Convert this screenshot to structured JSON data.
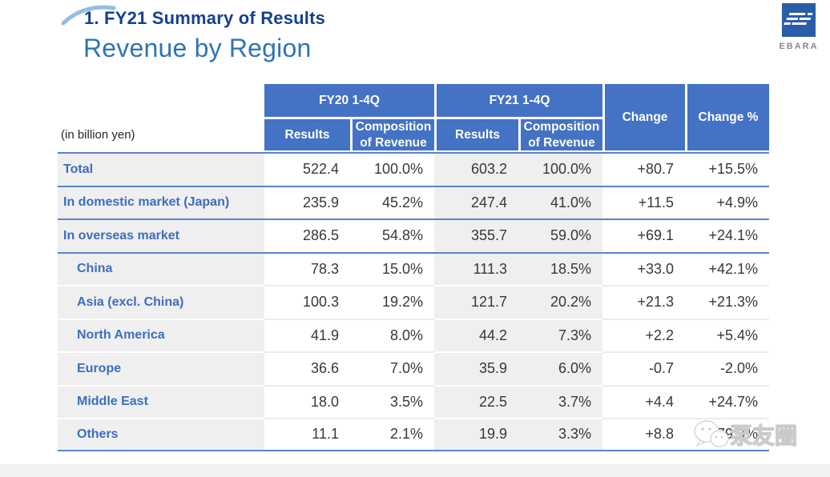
{
  "slide": {
    "kicker": "1. FY21 Summary of Results",
    "title": "Revenue by Region"
  },
  "logo": {
    "text": "EBARA"
  },
  "watermark": {
    "text": "泵友圈"
  },
  "table": {
    "unit_note": "(in billion yen)",
    "groups": [
      {
        "label": "FY20 1-4Q",
        "sub": [
          "Results",
          "Composition of Revenue"
        ]
      },
      {
        "label": "FY21 1-4Q",
        "sub": [
          "Results",
          "Composition of Revenue"
        ]
      }
    ],
    "change_label": "Change",
    "change_pct_label": "Change %",
    "rows": [
      {
        "label": "Total",
        "level": 0,
        "values": [
          "522.4",
          "100.0%",
          "603.2",
          "100.0%",
          "+80.7",
          "+15.5%"
        ]
      },
      {
        "label": "In domestic market (Japan)",
        "level": 0,
        "values": [
          "235.9",
          "45.2%",
          "247.4",
          "41.0%",
          "+11.5",
          "+4.9%"
        ]
      },
      {
        "label": "In overseas market",
        "level": 0,
        "values": [
          "286.5",
          "54.8%",
          "355.7",
          "59.0%",
          "+69.1",
          "+24.1%"
        ]
      },
      {
        "label": "China",
        "level": 1,
        "values": [
          "78.3",
          "15.0%",
          "111.3",
          "18.5%",
          "+33.0",
          "+42.1%"
        ]
      },
      {
        "label": "Asia (excl. China)",
        "level": 1,
        "values": [
          "100.3",
          "19.2%",
          "121.7",
          "20.2%",
          "+21.3",
          "+21.3%"
        ]
      },
      {
        "label": "North America",
        "level": 1,
        "values": [
          "41.9",
          "8.0%",
          "44.2",
          "7.3%",
          "+2.2",
          "+5.4%"
        ]
      },
      {
        "label": "Europe",
        "level": 1,
        "values": [
          "36.6",
          "7.0%",
          "35.9",
          "6.0%",
          "-0.7",
          "-2.0%"
        ]
      },
      {
        "label": "Middle East",
        "level": 1,
        "values": [
          "18.0",
          "3.5%",
          "22.5",
          "3.7%",
          "+4.4",
          "+24.7%"
        ]
      },
      {
        "label": "Others",
        "level": 1,
        "values": [
          "11.1",
          "2.1%",
          "19.9",
          "3.3%",
          "+8.8",
          "+79.3%"
        ]
      }
    ]
  },
  "colors": {
    "header_blue": "#4472C4",
    "kicker_blue": "#16418C",
    "title_blue": "#2E74B5",
    "label_blue": "#3D6EBE",
    "separator_blue": "#5B84C6",
    "band_gray": "#EFEFEF",
    "logo_blue": "#2A5CA8"
  }
}
